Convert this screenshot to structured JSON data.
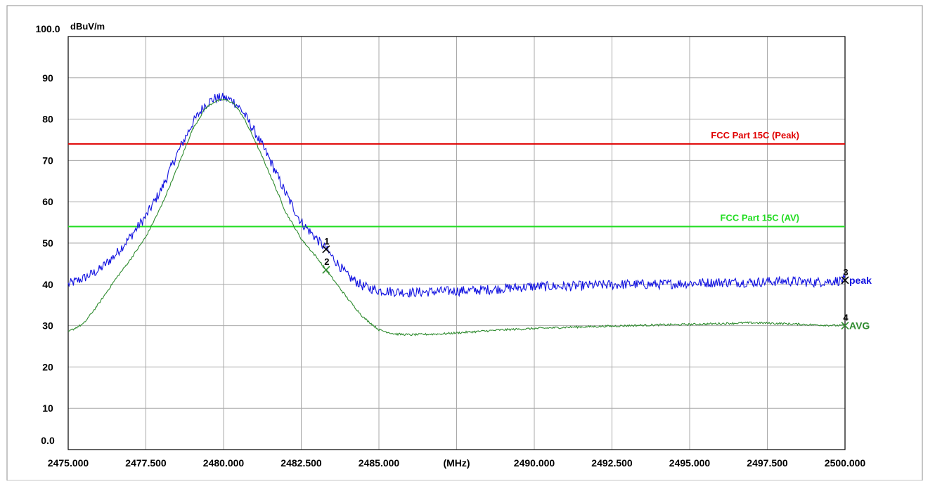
{
  "chart_data": {
    "type": "line",
    "ylabel_unit": "dBuV/m",
    "xlabel_unit": "(MHz)",
    "xlim": [
      2475.0,
      2500.0
    ],
    "ylim": [
      0.0,
      100.0
    ],
    "grid": true,
    "x_tick_labels": [
      {
        "x": 2475.0,
        "label": "2475.000"
      },
      {
        "x": 2477.5,
        "label": "2477.500"
      },
      {
        "x": 2480.0,
        "label": "2480.000"
      },
      {
        "x": 2482.5,
        "label": "2482.500"
      },
      {
        "x": 2485.0,
        "label": "2485.000"
      },
      {
        "x": 2487.5,
        "label": "(MHz)"
      },
      {
        "x": 2490.0,
        "label": "2490.000"
      },
      {
        "x": 2492.5,
        "label": "2492.500"
      },
      {
        "x": 2495.0,
        "label": "2495.000"
      },
      {
        "x": 2497.5,
        "label": "2497.500"
      },
      {
        "x": 2500.0,
        "label": "2500.000"
      }
    ],
    "y_tick_labels": [
      {
        "y": 0,
        "label": "0.0"
      },
      {
        "y": 10,
        "label": "10"
      },
      {
        "y": 20,
        "label": "20"
      },
      {
        "y": 30,
        "label": "30"
      },
      {
        "y": 40,
        "label": "40"
      },
      {
        "y": 50,
        "label": "50"
      },
      {
        "y": 60,
        "label": "60"
      },
      {
        "y": 70,
        "label": "70"
      },
      {
        "y": 80,
        "label": "80"
      },
      {
        "y": 90,
        "label": "90"
      },
      {
        "y": 100,
        "label": "100.0"
      }
    ],
    "limit_lines": [
      {
        "name": "FCC Part 15C (Peak)",
        "y": 74,
        "color": "#e00000"
      },
      {
        "name": "FCC Part 15C (AV)",
        "y": 54,
        "color": "#22dd22"
      }
    ],
    "series": [
      {
        "name": "peak",
        "color": "#1010e0",
        "noise": 1.2,
        "points": [
          [
            2475.0,
            40.0
          ],
          [
            2475.5,
            41.5
          ],
          [
            2476.0,
            43.5
          ],
          [
            2476.5,
            47.0
          ],
          [
            2477.0,
            51.5
          ],
          [
            2477.5,
            56.5
          ],
          [
            2478.0,
            63.0
          ],
          [
            2478.5,
            71.5
          ],
          [
            2479.0,
            79.0
          ],
          [
            2479.4,
            83.5
          ],
          [
            2479.7,
            85.0
          ],
          [
            2480.0,
            85.2
          ],
          [
            2480.3,
            84.5
          ],
          [
            2480.6,
            82.0
          ],
          [
            2481.0,
            77.0
          ],
          [
            2481.5,
            70.0
          ],
          [
            2482.0,
            62.0
          ],
          [
            2482.5,
            55.0
          ],
          [
            2483.0,
            51.0
          ],
          [
            2483.3,
            48.5
          ],
          [
            2484.0,
            42.0
          ],
          [
            2484.5,
            39.5
          ],
          [
            2485.0,
            38.5
          ],
          [
            2486.0,
            38.0
          ],
          [
            2487.0,
            38.3
          ],
          [
            2488.0,
            38.5
          ],
          [
            2489.0,
            39.0
          ],
          [
            2490.0,
            39.5
          ],
          [
            2491.0,
            39.5
          ],
          [
            2492.0,
            39.8
          ],
          [
            2493.0,
            40.0
          ],
          [
            2494.0,
            40.0
          ],
          [
            2495.0,
            40.3
          ],
          [
            2496.0,
            40.5
          ],
          [
            2497.0,
            40.5
          ],
          [
            2498.0,
            40.8
          ],
          [
            2499.0,
            40.5
          ],
          [
            2500.0,
            41.0
          ]
        ]
      },
      {
        "name": "AVG",
        "color": "#2e8b2e",
        "noise": 0.25,
        "points": [
          [
            2475.0,
            28.5
          ],
          [
            2475.5,
            30.5
          ],
          [
            2476.0,
            35.5
          ],
          [
            2476.5,
            41.0
          ],
          [
            2477.0,
            46.0
          ],
          [
            2477.5,
            51.5
          ],
          [
            2478.0,
            59.0
          ],
          [
            2478.5,
            68.0
          ],
          [
            2479.0,
            77.5
          ],
          [
            2479.4,
            82.5
          ],
          [
            2479.7,
            84.2
          ],
          [
            2480.0,
            84.8
          ],
          [
            2480.3,
            84.0
          ],
          [
            2480.6,
            81.0
          ],
          [
            2481.0,
            75.0
          ],
          [
            2481.5,
            66.5
          ],
          [
            2482.0,
            57.5
          ],
          [
            2482.5,
            51.0
          ],
          [
            2483.0,
            46.5
          ],
          [
            2483.3,
            43.5
          ],
          [
            2484.0,
            36.5
          ],
          [
            2484.5,
            32.0
          ],
          [
            2485.0,
            29.0
          ],
          [
            2485.5,
            28.0
          ],
          [
            2486.0,
            27.8
          ],
          [
            2487.0,
            28.0
          ],
          [
            2488.0,
            28.5
          ],
          [
            2489.0,
            29.0
          ],
          [
            2490.0,
            29.3
          ],
          [
            2491.0,
            29.6
          ],
          [
            2492.0,
            29.8
          ],
          [
            2493.0,
            30.0
          ],
          [
            2494.0,
            30.2
          ],
          [
            2495.0,
            30.3
          ],
          [
            2496.0,
            30.5
          ],
          [
            2497.0,
            30.7
          ],
          [
            2498.0,
            30.5
          ],
          [
            2499.0,
            30.2
          ],
          [
            2500.0,
            30.0
          ]
        ]
      }
    ],
    "markers": [
      {
        "id": "1",
        "x": 2483.3,
        "y": 48.5
      },
      {
        "id": "2",
        "x": 2483.3,
        "y": 43.5
      },
      {
        "id": "3",
        "x": 2500.0,
        "y": 41.0
      },
      {
        "id": "4",
        "x": 2500.0,
        "y": 30.0
      }
    ],
    "series_labels": [
      {
        "text": "peak",
        "y": 41.0,
        "color": "#1010e0"
      },
      {
        "text": "AVG",
        "y": 30.0,
        "color": "#2e8b2e"
      }
    ]
  }
}
